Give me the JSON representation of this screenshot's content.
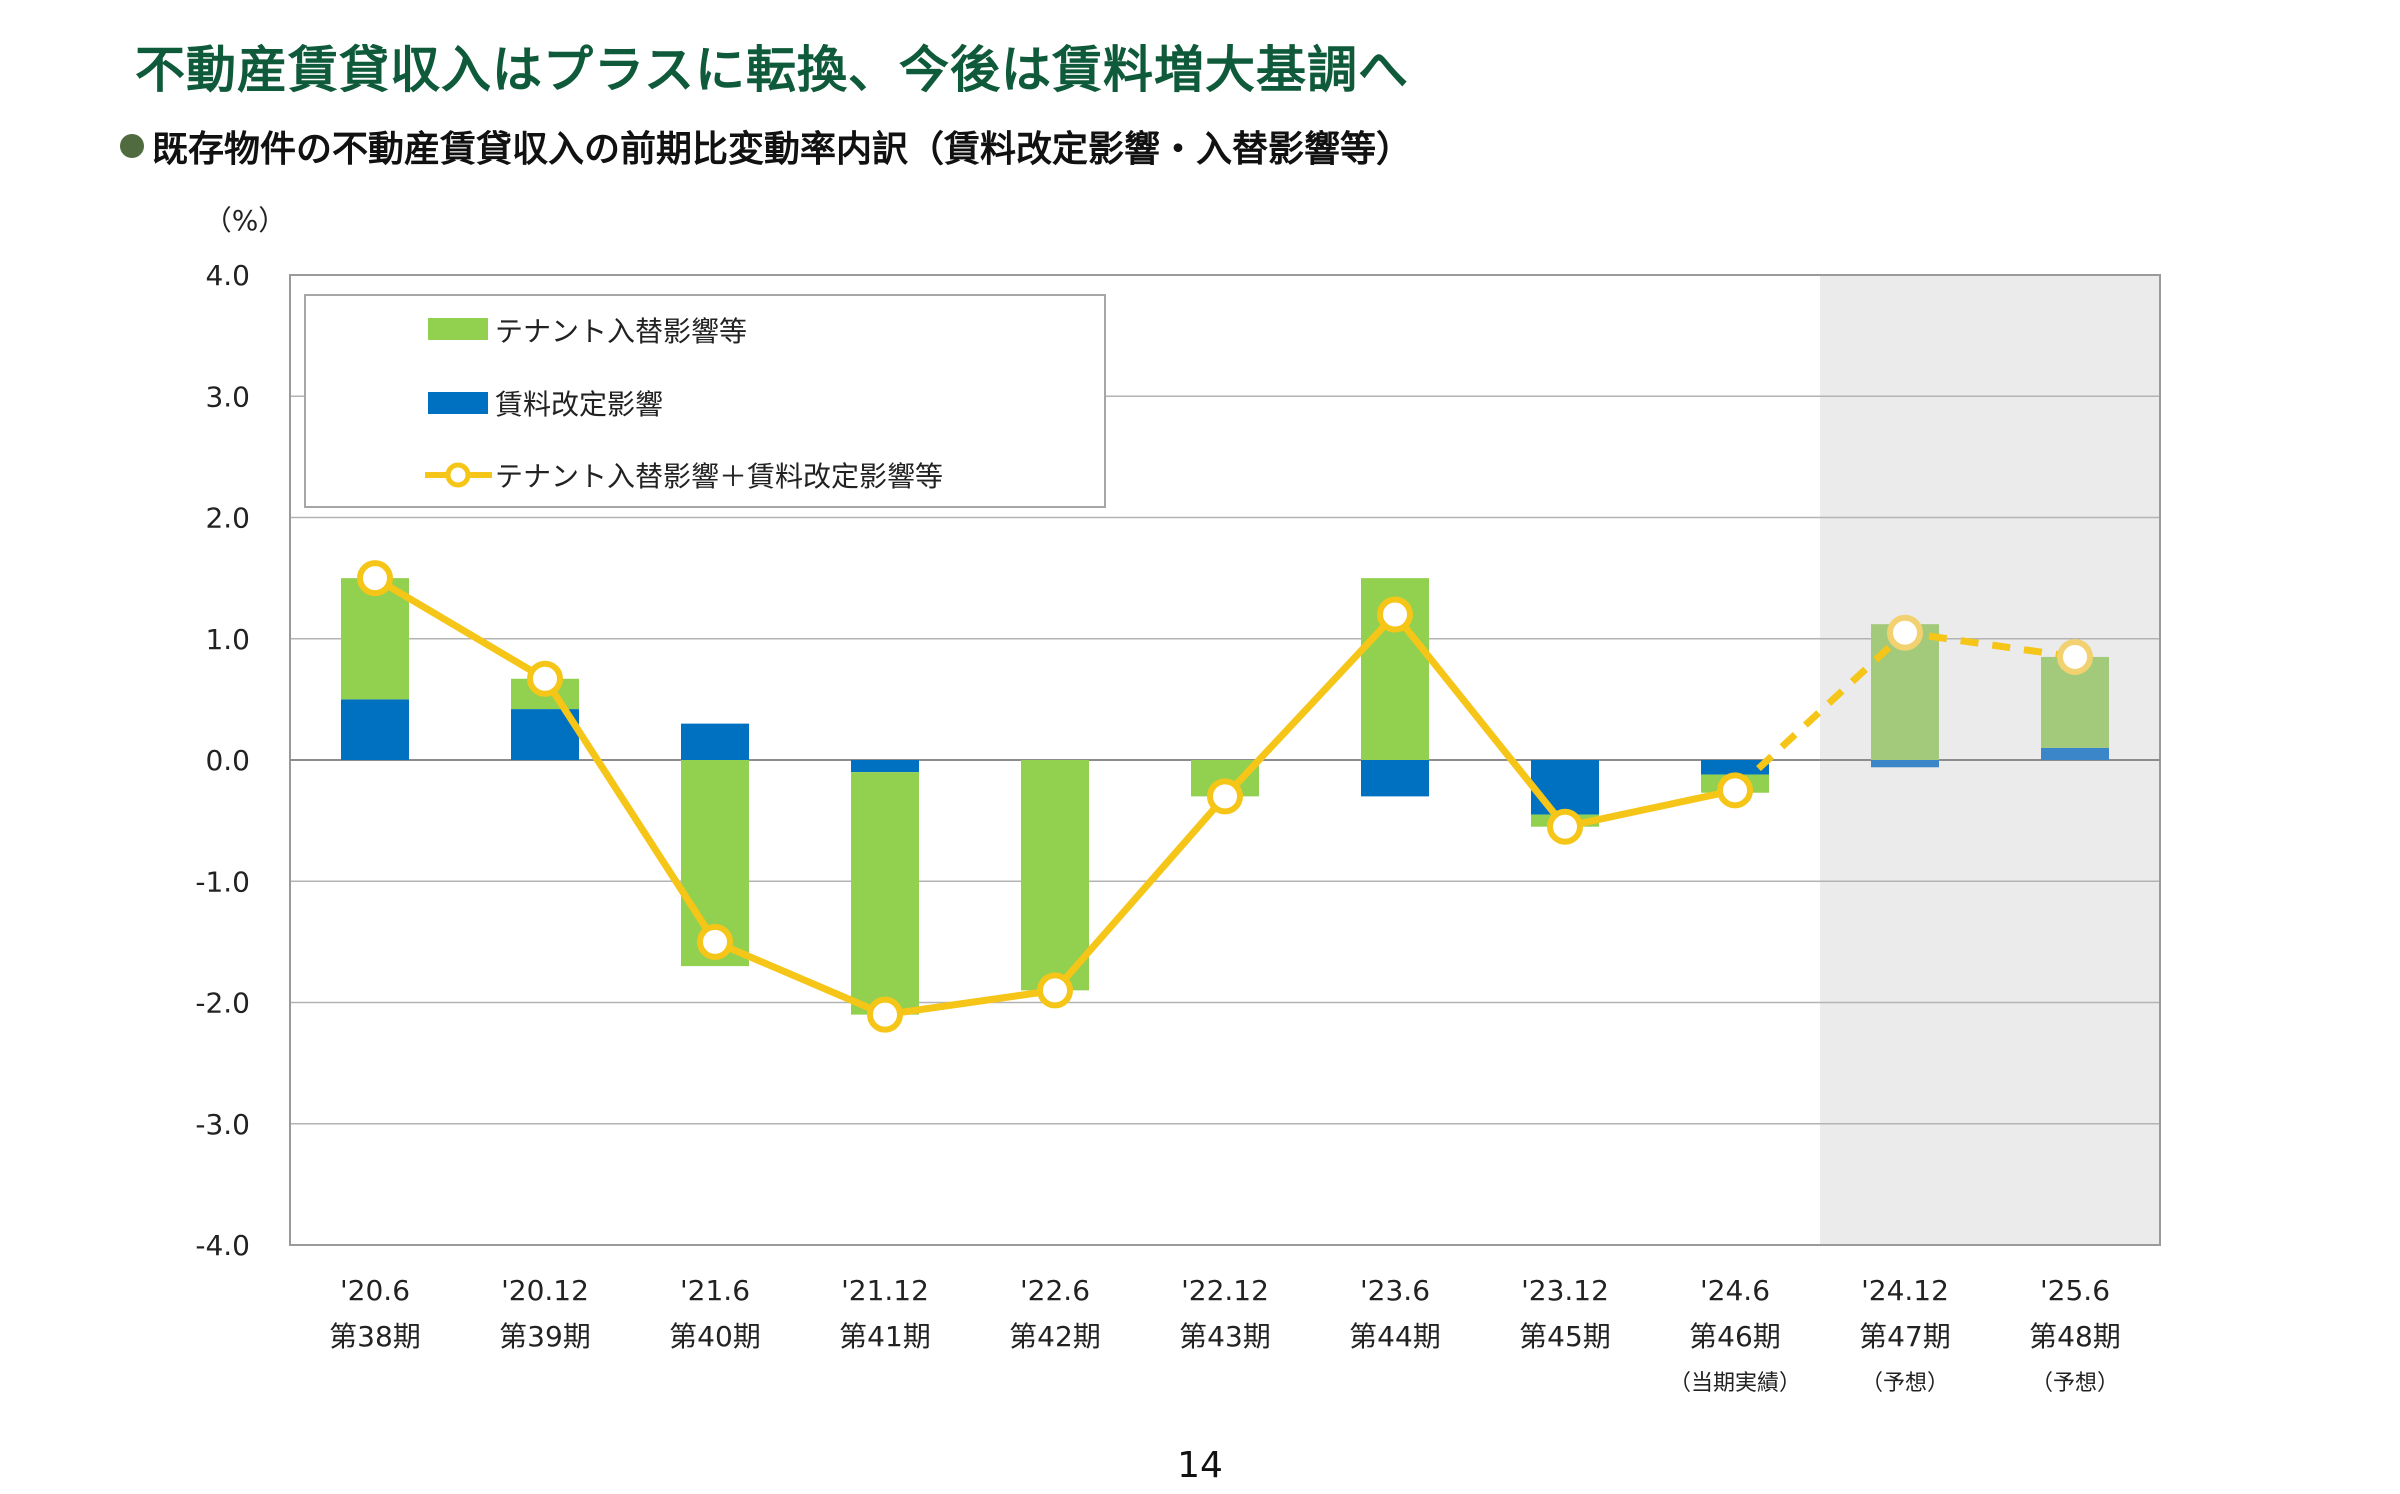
{
  "page": {
    "title": "不動産賃貸収入はプラスに転換、今後は賃料増大基調へ",
    "subtitle": "既存物件の不動産賃貸収入の前期比変動率内訳（賃料改定影響・入替影響等）",
    "page_number": "14"
  },
  "chart_data": {
    "type": "bar",
    "stacked": true,
    "y_unit_label": "（%）",
    "ylim": [
      -4.0,
      4.0
    ],
    "yticks": [
      "4.0",
      "3.0",
      "2.0",
      "1.0",
      "0.0",
      "-1.0",
      "-2.0",
      "-3.0",
      "-4.0"
    ],
    "grid": true,
    "legend_position": "top-left",
    "categories": [
      "'20.6",
      "'20.12",
      "'21.6",
      "'21.12",
      "'22.6",
      "'22.12",
      "'23.6",
      "'23.12",
      "'24.6",
      "'24.12",
      "'25.6"
    ],
    "periods": [
      "第38期",
      "第39期",
      "第40期",
      "第41期",
      "第42期",
      "第43期",
      "第44期",
      "第45期",
      "第46期",
      "第47期",
      "第48期"
    ],
    "notes": [
      "",
      "",
      "",
      "",
      "",
      "",
      "",
      "",
      "（当期実績）",
      "（予想）",
      "（予想）"
    ],
    "forecast_from_index": 9,
    "series": [
      {
        "name": "テナント入替影響等",
        "kind": "bar",
        "color": "#92d050",
        "forecast_color": "#a3c97a",
        "values": [
          1.0,
          0.25,
          -1.7,
          -2.0,
          -1.9,
          -0.3,
          1.5,
          -0.1,
          -0.15,
          1.12,
          0.75
        ]
      },
      {
        "name": "賃料改定影響",
        "kind": "bar",
        "color": "#0070c0",
        "forecast_color": "#3a86c8",
        "values": [
          0.5,
          0.42,
          0.3,
          -0.1,
          0.0,
          0.0,
          -0.3,
          -0.45,
          -0.12,
          -0.06,
          0.1
        ]
      },
      {
        "name": "テナント入替影響＋賃料改定影響等",
        "kind": "line",
        "color": "#f5c518",
        "values": [
          1.5,
          0.67,
          -1.5,
          -2.1,
          -1.9,
          -0.3,
          1.2,
          -0.55,
          -0.25,
          1.05,
          0.85
        ]
      }
    ]
  }
}
